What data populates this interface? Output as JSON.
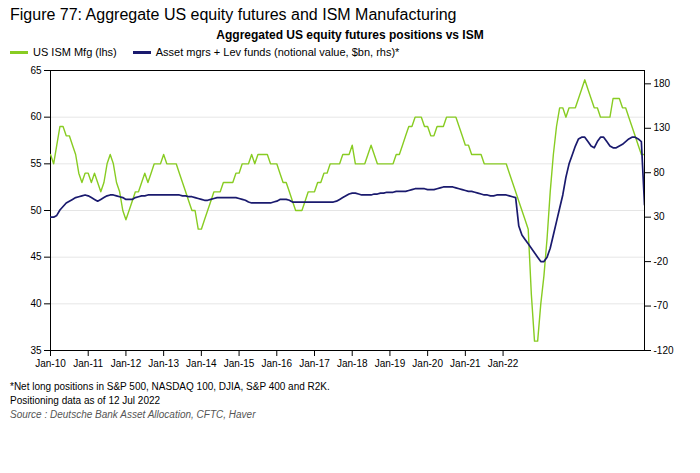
{
  "chart_data": {
    "type": "line",
    "title": "Figure 77: Aggregate US equity futures and ISM Manufacturing",
    "subtitle": "Aggregated US equity futures positions vs ISM",
    "annotations": [
      "*Net long positions in S&P 500, NASDAQ 100, DJIA, S&P 400 and R2K.",
      "Positioning data as of 12 Jul 2022"
    ],
    "source": "Source : Deutsche Bank Asset Allocation, CFTC, Haver",
    "legend": "upper left",
    "grid": true,
    "xlim": [
      0,
      189
    ],
    "xticks": [
      {
        "value": 0,
        "label": "Jan-10"
      },
      {
        "value": 12,
        "label": "Jan-11"
      },
      {
        "value": 24,
        "label": "Jan-12"
      },
      {
        "value": 36,
        "label": "Jan-13"
      },
      {
        "value": 48,
        "label": "Jan-14"
      },
      {
        "value": 60,
        "label": "Jan-15"
      },
      {
        "value": 72,
        "label": "Jan-16"
      },
      {
        "value": 84,
        "label": "Jan-17"
      },
      {
        "value": 96,
        "label": "Jan-18"
      },
      {
        "value": 108,
        "label": "Jan-19"
      },
      {
        "value": 120,
        "label": "Jan-20"
      },
      {
        "value": 132,
        "label": "Jan-21"
      },
      {
        "value": 144,
        "label": "Jan-22"
      }
    ],
    "ylim": [
      35,
      65
    ],
    "yticks": [
      35,
      40,
      45,
      50,
      55,
      60,
      65
    ],
    "y2lim": [
      -120,
      195
    ],
    "y2ticks": [
      -120,
      -70,
      -20,
      30,
      80,
      130,
      180
    ],
    "series": [
      {
        "name": "US ISM Mfg (lhs)",
        "color": "#88cc22",
        "values": [
          56,
          55,
          57,
          59,
          59,
          58,
          58,
          57,
          56,
          54,
          53,
          54,
          54,
          53,
          54,
          53,
          52,
          53,
          55,
          56,
          55,
          53,
          52,
          50,
          49,
          50,
          51,
          52,
          52,
          53,
          54,
          53,
          54,
          55,
          55,
          55,
          56,
          55,
          55,
          55,
          55,
          54,
          53,
          52,
          51,
          50,
          50,
          48,
          48,
          49,
          50,
          51,
          52,
          52,
          52,
          53,
          53,
          53,
          53,
          54,
          54,
          55,
          55,
          55,
          56,
          55,
          56,
          56,
          56,
          56,
          55,
          55,
          55,
          54,
          53,
          53,
          52,
          51,
          50,
          50,
          50,
          51,
          52,
          52,
          52,
          53,
          53,
          54,
          54,
          55,
          55,
          55,
          55,
          56,
          56,
          56,
          57,
          55,
          55,
          55,
          55,
          56,
          57,
          56,
          55,
          55,
          55,
          55,
          55,
          55,
          56,
          56,
          57,
          58,
          59,
          59,
          60,
          60,
          60,
          59,
          59,
          58,
          58,
          59,
          59,
          59,
          60,
          60,
          60,
          60,
          59,
          58,
          57,
          57,
          56,
          56,
          56,
          56,
          55,
          55,
          55,
          55,
          55,
          55,
          55,
          55,
          54,
          53,
          52,
          51,
          50,
          49,
          48,
          41,
          36,
          36,
          40,
          43,
          47,
          52,
          56,
          59,
          61,
          61,
          60,
          61,
          61,
          61,
          62,
          63,
          64,
          63,
          62,
          61,
          61,
          60,
          60,
          60,
          60,
          62,
          62,
          62,
          61,
          61,
          60,
          59,
          58,
          57,
          56,
          56
        ]
      },
      {
        "name": "Asset mgrs + Lev funds (notional value, $bn, rhs)*",
        "color": "#1a1a6e",
        "axis": "y2",
        "values": [
          30,
          30,
          32,
          38,
          42,
          46,
          48,
          50,
          52,
          53,
          54,
          55,
          54,
          52,
          50,
          48,
          50,
          52,
          54,
          55,
          55,
          54,
          53,
          52,
          50,
          50,
          50,
          52,
          53,
          54,
          54,
          55,
          55,
          55,
          55,
          55,
          55,
          55,
          55,
          55,
          55,
          55,
          54,
          54,
          53,
          53,
          52,
          51,
          50,
          49,
          49,
          50,
          51,
          52,
          52,
          52,
          52,
          52,
          52,
          52,
          51,
          50,
          49,
          47,
          46,
          46,
          46,
          46,
          46,
          46,
          46,
          47,
          48,
          50,
          50,
          50,
          49,
          47,
          47,
          47,
          47,
          47,
          47,
          47,
          47,
          47,
          47,
          47,
          47,
          47,
          47,
          48,
          50,
          52,
          54,
          56,
          57,
          57,
          56,
          55,
          55,
          55,
          55,
          56,
          56,
          57,
          57,
          58,
          58,
          58,
          59,
          59,
          59,
          59,
          60,
          61,
          62,
          62,
          62,
          62,
          61,
          61,
          61,
          62,
          63,
          64,
          64,
          64,
          64,
          63,
          62,
          61,
          60,
          59,
          59,
          58,
          57,
          56,
          55,
          55,
          54,
          54,
          55,
          55,
          55,
          55,
          54,
          53,
          52,
          20,
          10,
          5,
          0,
          -5,
          -10,
          -15,
          -20,
          -20,
          -15,
          -5,
          10,
          25,
          40,
          55,
          75,
          90,
          100,
          110,
          118,
          120,
          120,
          115,
          110,
          108,
          115,
          120,
          120,
          115,
          110,
          108,
          108,
          110,
          112,
          115,
          118,
          120,
          120,
          118,
          115,
          44
        ]
      }
    ]
  }
}
